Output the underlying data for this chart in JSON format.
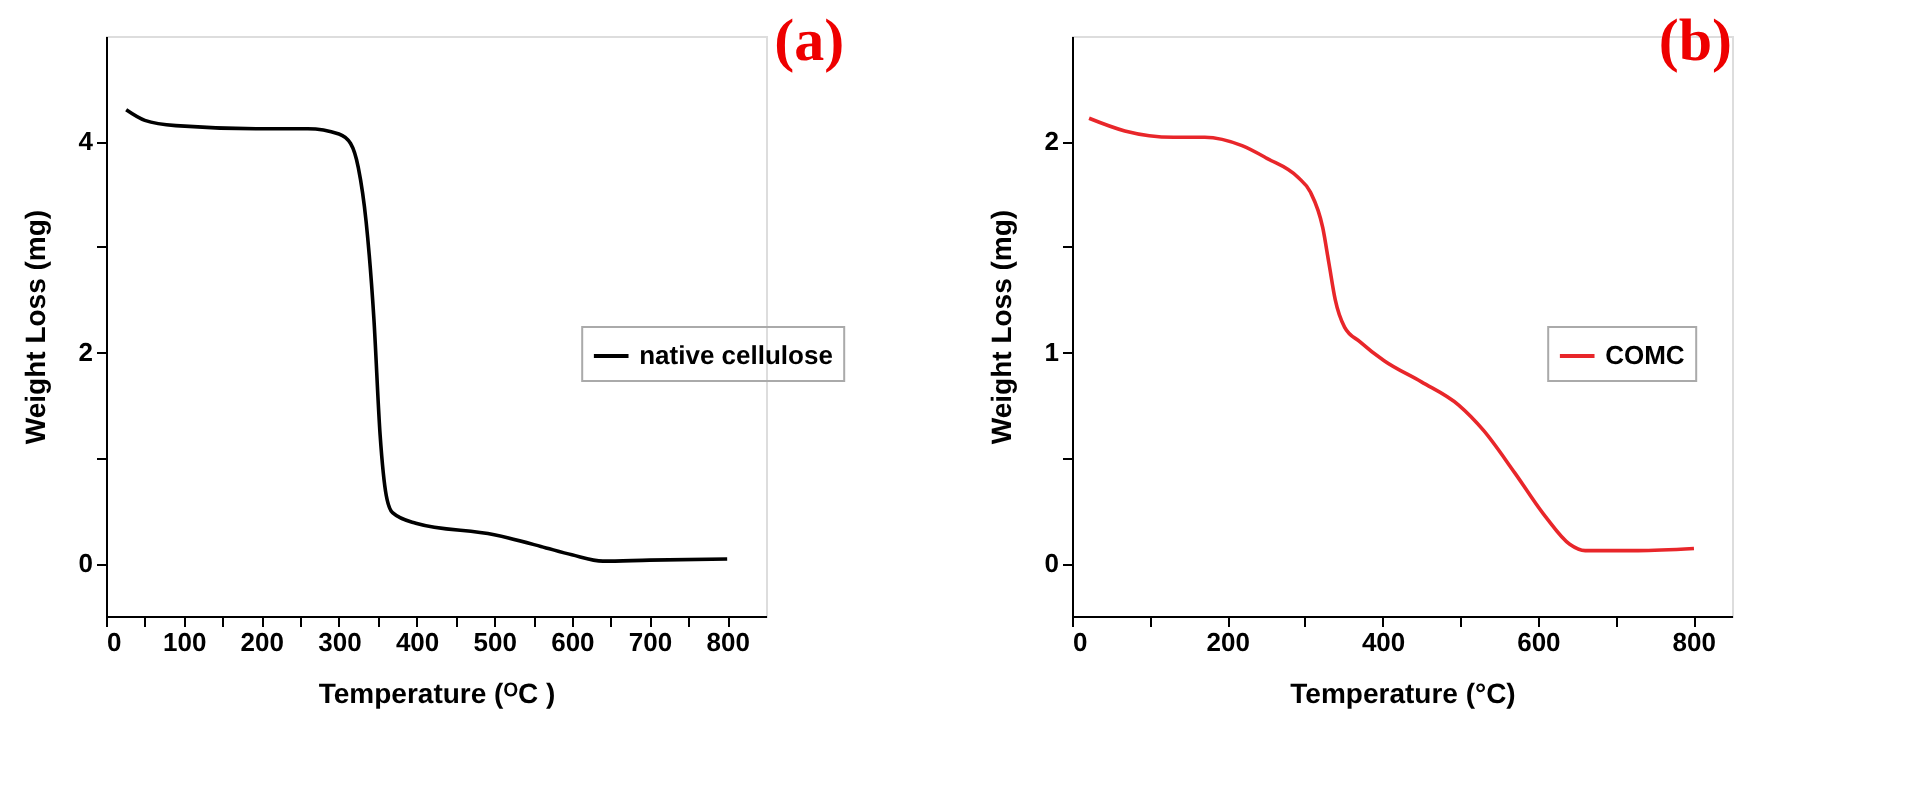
{
  "chart_data": [
    {
      "type": "line",
      "title": "(a)",
      "xlabel": "Temperature (ᴼC )",
      "ylabel": "Weight Loss (mg)",
      "xlim": [
        0,
        850
      ],
      "ylim": [
        -0.5,
        5
      ],
      "xticks": [
        0,
        {
          "value": 50,
          "label": null
        },
        100,
        {
          "value": 150,
          "label": null
        },
        200,
        {
          "value": 250,
          "label": null
        },
        300,
        {
          "value": 350,
          "label": null
        },
        400,
        {
          "value": 450,
          "label": null
        },
        500,
        {
          "value": 550,
          "label": null
        },
        600,
        {
          "value": 650,
          "label": null
        },
        700,
        {
          "value": 750,
          "label": null
        },
        800
      ],
      "yticks": [
        0,
        {
          "value": 1,
          "label": null
        },
        2,
        {
          "value": 3,
          "label": null
        },
        4
      ],
      "legend": "right",
      "grid": false,
      "series": [
        {
          "name": "native cellulose",
          "color": "#000000",
          "x": [
            26,
            50,
            90,
            200,
            260,
            300,
            315,
            325,
            335,
            345,
            353,
            361,
            369,
            399,
            500,
            560,
            600,
            640,
            700,
            800
          ],
          "values": [
            4.3,
            4.2,
            4.15,
            4.12,
            4.12,
            4.07,
            3.98,
            3.75,
            3.24,
            2.32,
            1.22,
            0.64,
            0.48,
            0.38,
            0.27,
            0.16,
            0.08,
            0.02,
            0.03,
            0.04
          ]
        }
      ]
    },
    {
      "type": "line",
      "title": "(b)",
      "xlabel": "Temperature (°C)",
      "ylabel": "Weight Loss (mg)",
      "xlim": [
        0,
        850
      ],
      "ylim": [
        -0.25,
        2.5
      ],
      "xticks": [
        0,
        {
          "value": 100,
          "label": null
        },
        200,
        {
          "value": 300,
          "label": null
        },
        400,
        {
          "value": 500,
          "label": null
        },
        600,
        {
          "value": 700,
          "label": null
        },
        800
      ],
      "yticks": [
        0,
        {
          "value": 0.5,
          "label": null
        },
        1,
        {
          "value": 1.5,
          "label": null
        },
        2
      ],
      "legend": "right",
      "grid": false,
      "series": [
        {
          "name": "COMC",
          "color": "#e8262a",
          "x": [
            22,
            68,
            131,
            171,
            219,
            251,
            291,
            307,
            323,
            331,
            339,
            351,
            371,
            402,
            450,
            498,
            530,
            570,
            610,
            641,
            661,
            729,
            801
          ],
          "values": [
            2.11,
            2.05,
            2.02,
            2.02,
            1.98,
            1.92,
            1.83,
            1.76,
            1.59,
            1.42,
            1.25,
            1.12,
            1.05,
            0.96,
            0.86,
            0.75,
            0.63,
            0.43,
            0.22,
            0.09,
            0.06,
            0.06,
            0.07
          ]
        }
      ]
    }
  ]
}
